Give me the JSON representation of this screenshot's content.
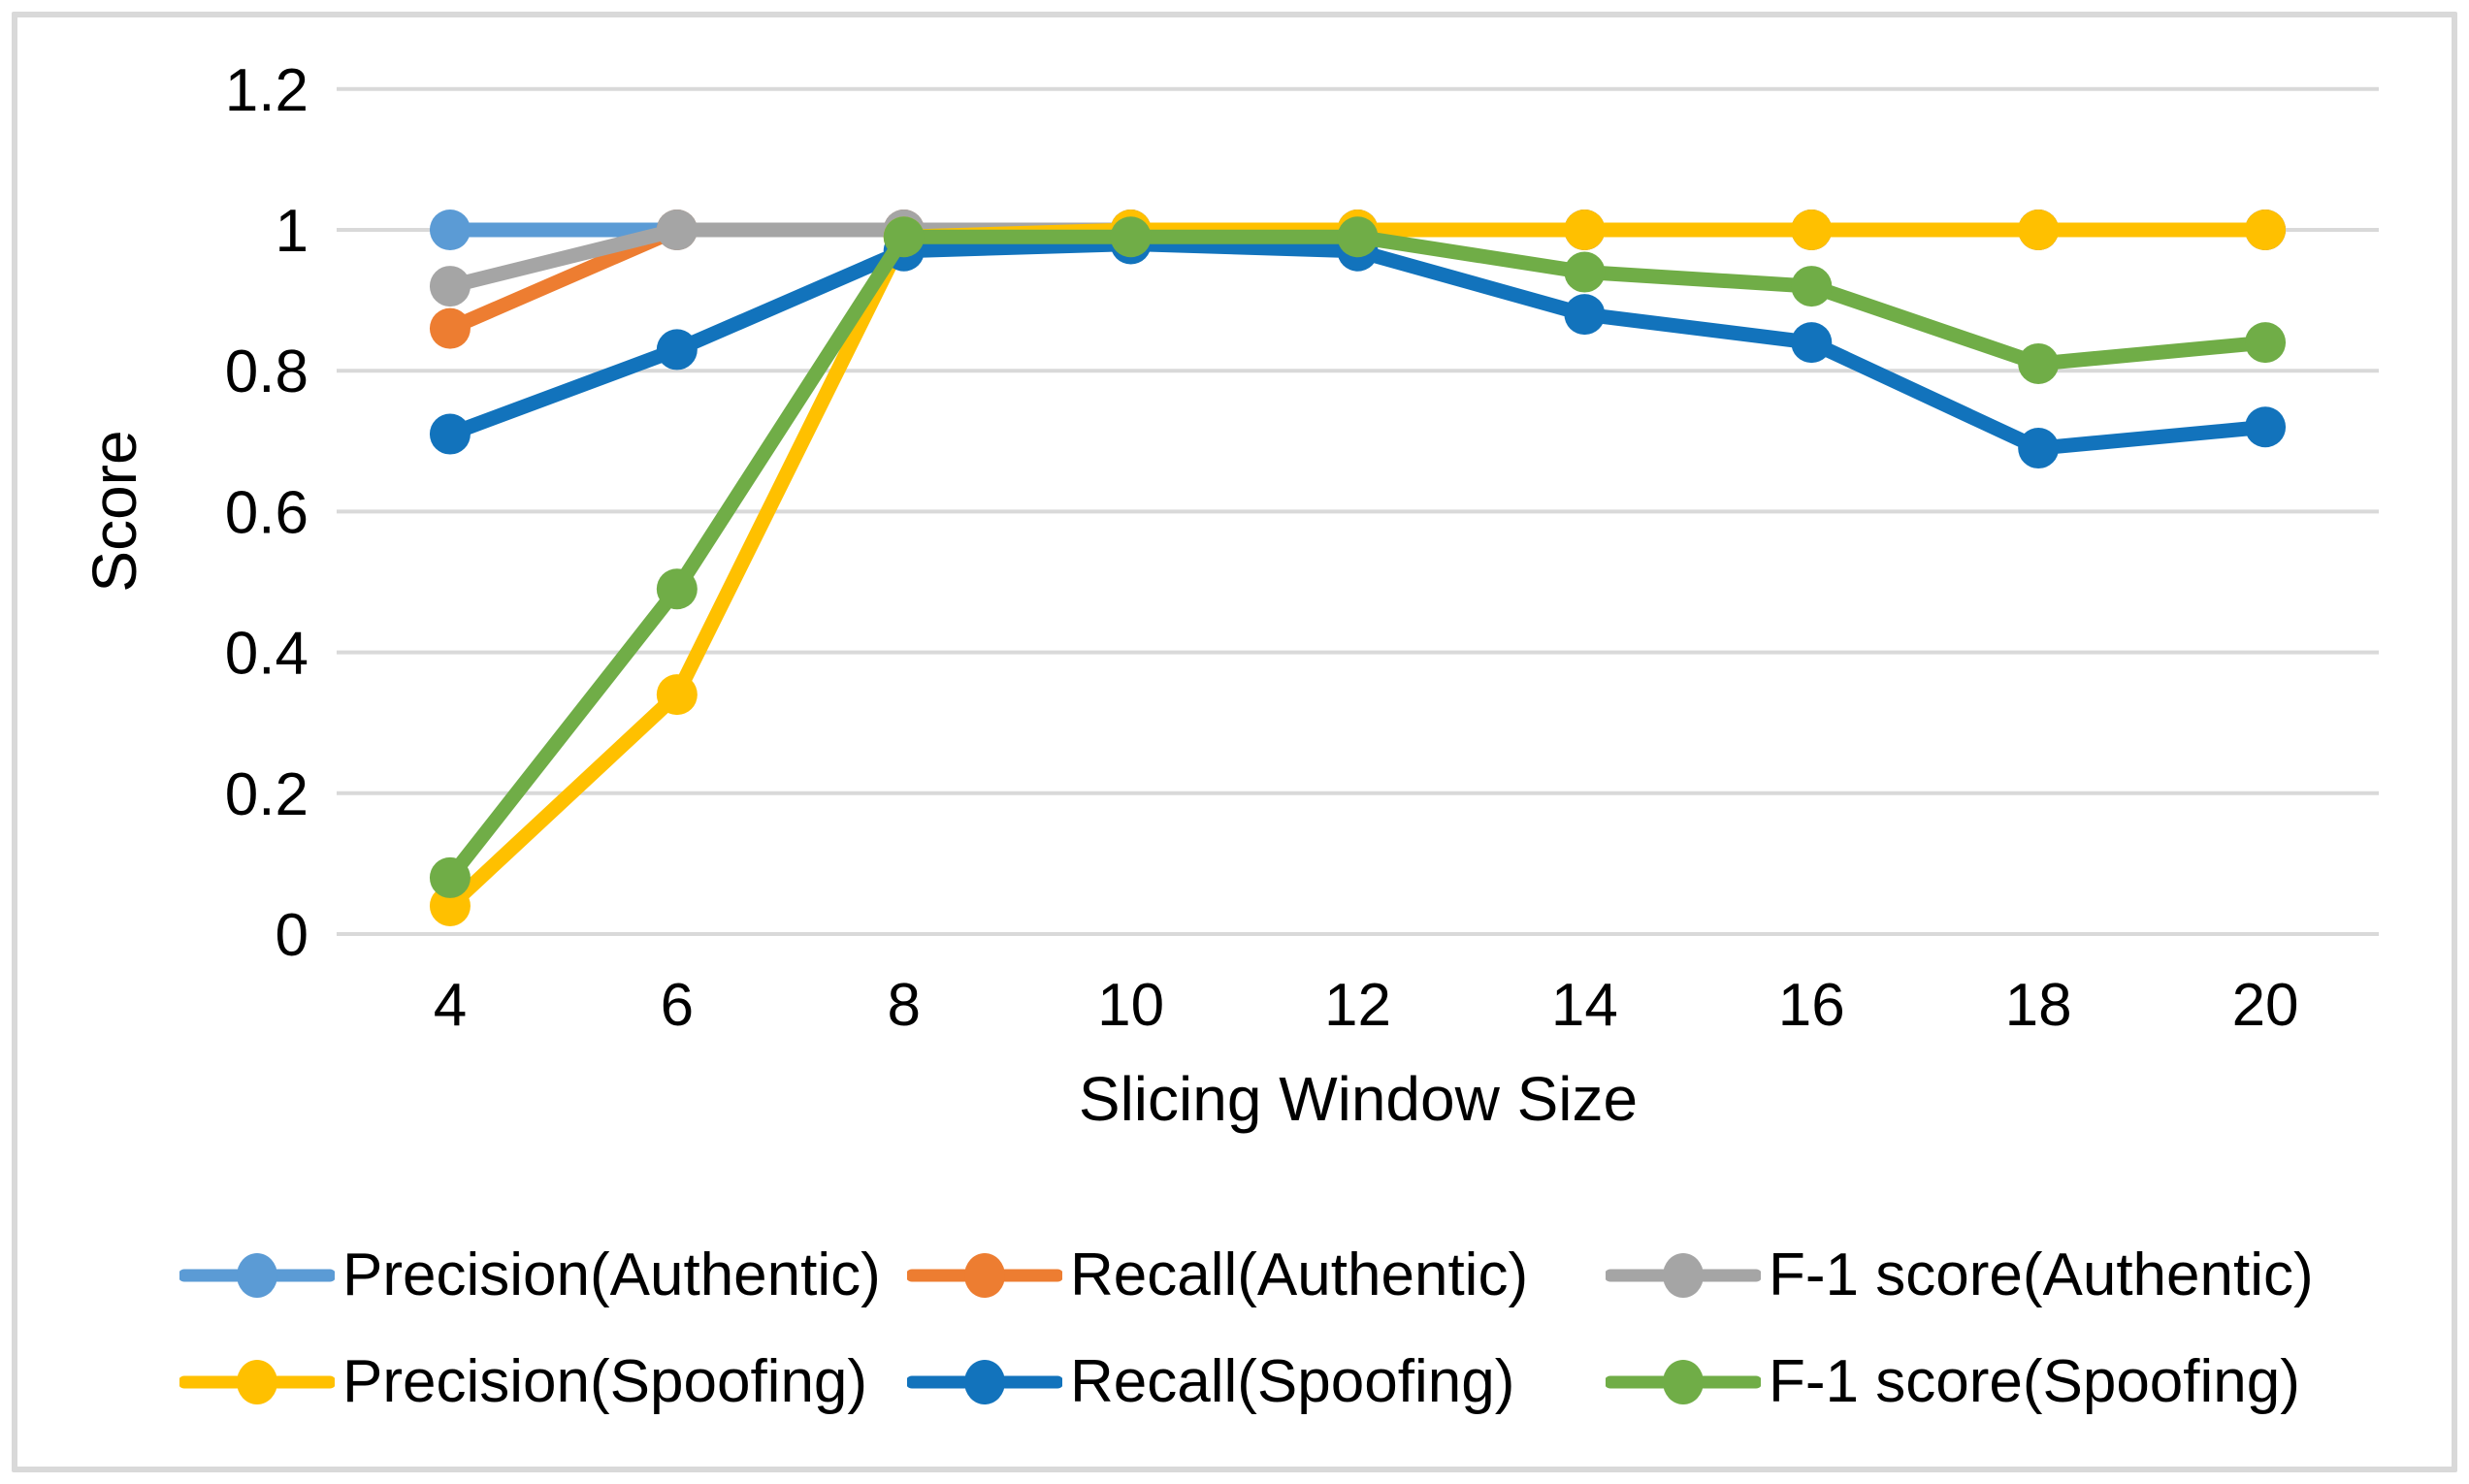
{
  "figure": {
    "background_color": "#FFFFFF",
    "border_color": "#D9D9D9",
    "gridline_color": "#D9D9D9",
    "text_color": "#000000"
  },
  "chart_data": {
    "type": "line",
    "title": "",
    "xlabel": "Slicing Window Size",
    "ylabel": "Score",
    "categories": [
      4,
      6,
      8,
      10,
      12,
      14,
      16,
      18,
      20
    ],
    "y_ticks": [
      0,
      0.2,
      0.4,
      0.6,
      0.8,
      1,
      1.2
    ],
    "ylim": [
      0,
      1.2
    ],
    "grid": "horizontal",
    "legend_position": "bottom",
    "marker": "circle",
    "series": [
      {
        "name": "Precision(Authentic)",
        "color": "#5B9BD5",
        "values": [
          1,
          1,
          1,
          1,
          1,
          1,
          1,
          1,
          1
        ]
      },
      {
        "name": "Recall(Authentic)",
        "color": "#ED7D31",
        "values": [
          0.86,
          1,
          1,
          1,
          1,
          1,
          1,
          1,
          1
        ]
      },
      {
        "name": "F-1 score(Authentic)",
        "color": "#A5A5A5",
        "values": [
          0.92,
          1,
          1,
          1,
          1,
          1,
          1,
          1,
          1
        ]
      },
      {
        "name": "Precision(Spoofing)",
        "color": "#FFC000",
        "values": [
          0.04,
          0.34,
          0.99,
          1,
          1,
          1,
          1,
          1,
          1
        ]
      },
      {
        "name": "Recall(Spoofing)",
        "color": "#1273BC",
        "values": [
          0.71,
          0.83,
          0.97,
          0.98,
          0.97,
          0.88,
          0.84,
          0.69,
          0.72
        ]
      },
      {
        "name": "F-1 score(Spoofing)",
        "color": "#70AD47",
        "values": [
          0.08,
          0.49,
          0.99,
          0.99,
          0.99,
          0.94,
          0.92,
          0.81,
          0.84
        ]
      }
    ]
  }
}
